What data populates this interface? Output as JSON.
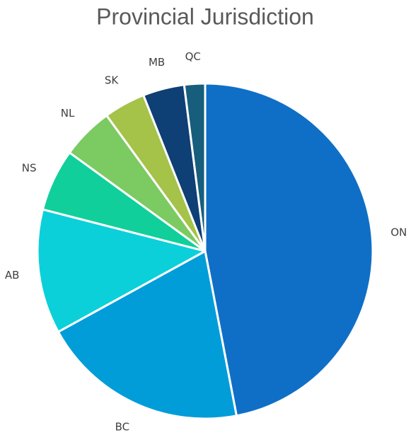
{
  "chart_data": {
    "type": "pie",
    "title": "Provincial Jurisdiction",
    "categories": [
      "ON",
      "BC",
      "AB",
      "NS",
      "NL",
      "SK",
      "MB",
      "QC"
    ],
    "values": [
      47,
      20,
      12,
      6,
      5,
      4,
      4,
      2
    ],
    "colors": [
      "#0f6fc6",
      "#009dd9",
      "#0bd0d9",
      "#10cf9b",
      "#7cca62",
      "#a5c249",
      "#0e3f75",
      "#165e7c"
    ]
  }
}
